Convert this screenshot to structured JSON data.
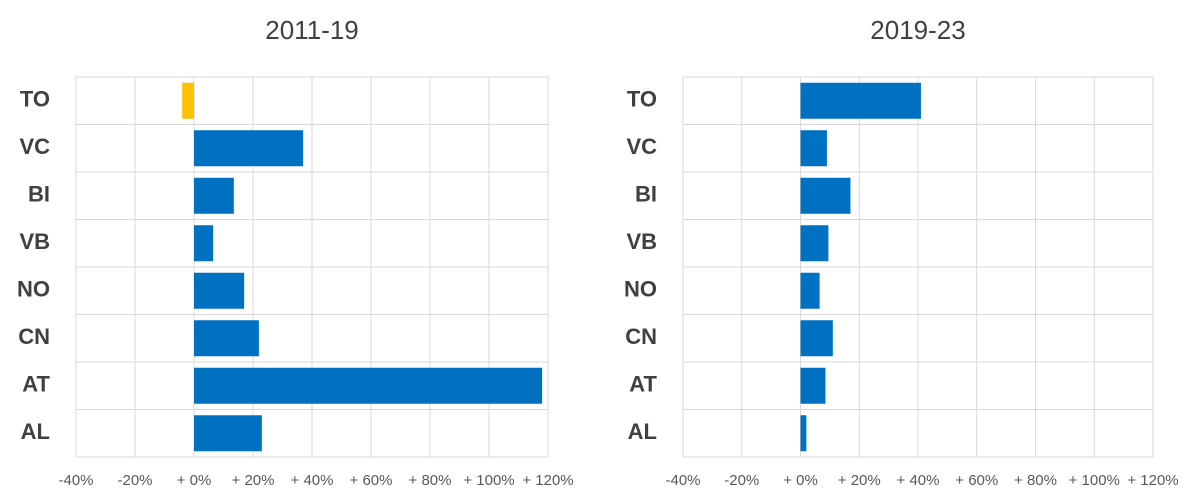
{
  "chart_data": [
    {
      "type": "bar",
      "orientation": "horizontal",
      "title": "2011-19",
      "categories": [
        "TO",
        "VC",
        "BI",
        "VB",
        "NO",
        "CN",
        "AT",
        "AL"
      ],
      "values": [
        -4,
        37,
        13.5,
        6.5,
        17,
        22,
        118,
        23
      ],
      "colors": [
        "#ffc000",
        "#0070c0",
        "#0070c0",
        "#0070c0",
        "#0070c0",
        "#0070c0",
        "#0070c0",
        "#0070c0"
      ],
      "xlim": [
        -40,
        120
      ],
      "xticks": [
        {
          "value": -40,
          "label": "-40%"
        },
        {
          "value": -20,
          "label": "-20%"
        },
        {
          "value": 0,
          "label": "+ 0%"
        },
        {
          "value": 20,
          "label": "+ 20%"
        },
        {
          "value": 40,
          "label": "+ 40%"
        },
        {
          "value": 60,
          "label": "+ 60%"
        },
        {
          "value": 80,
          "label": "+ 80%"
        },
        {
          "value": 100,
          "label": "+ 100%"
        },
        {
          "value": 120,
          "label": "+ 120%"
        }
      ],
      "grid": true
    },
    {
      "type": "bar",
      "orientation": "horizontal",
      "title": "2019-23",
      "categories": [
        "TO",
        "VC",
        "BI",
        "VB",
        "NO",
        "CN",
        "AT",
        "AL"
      ],
      "values": [
        41,
        9,
        17,
        9.5,
        6.5,
        11,
        8.5,
        2
      ],
      "colors": [
        "#0070c0",
        "#0070c0",
        "#0070c0",
        "#0070c0",
        "#0070c0",
        "#0070c0",
        "#0070c0",
        "#0070c0"
      ],
      "xlim": [
        -40,
        120
      ],
      "xticks": [
        {
          "value": -40,
          "label": "-40%"
        },
        {
          "value": -20,
          "label": "-20%"
        },
        {
          "value": 0,
          "label": "+ 0%"
        },
        {
          "value": 20,
          "label": "+ 20%"
        },
        {
          "value": 40,
          "label": "+ 40%"
        },
        {
          "value": 60,
          "label": "+ 60%"
        },
        {
          "value": 80,
          "label": "+ 80%"
        },
        {
          "value": 100,
          "label": "+ 100%"
        },
        {
          "value": 120,
          "label": "+ 120%"
        }
      ],
      "grid": true
    }
  ]
}
